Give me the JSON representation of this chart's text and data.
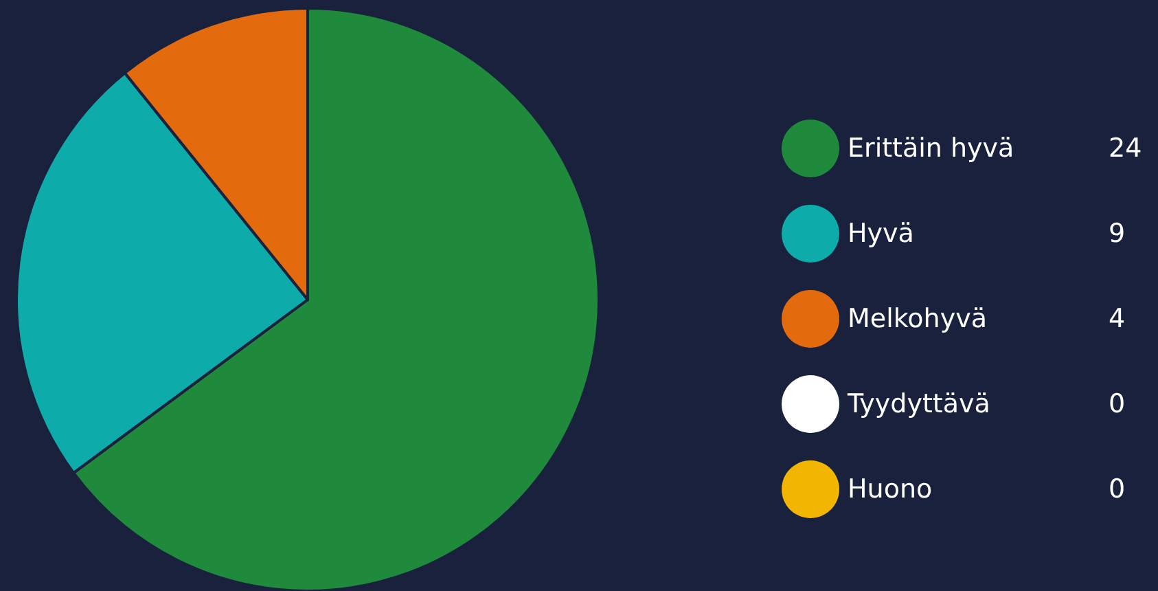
{
  "chart_data": {
    "type": "pie",
    "categories": [
      "Erittäin hyvä",
      "Hyvä",
      "Melkohyvä",
      "Tyydyttävä",
      "Huono"
    ],
    "values": [
      24,
      9,
      4,
      0,
      0
    ],
    "value_labels": [
      "24",
      "9",
      "4",
      "0",
      "0"
    ],
    "colors": [
      "#1f8a3b",
      "#0eabab",
      "#e46a0e",
      "#ffffff",
      "#f3b600"
    ],
    "legend": "right"
  }
}
